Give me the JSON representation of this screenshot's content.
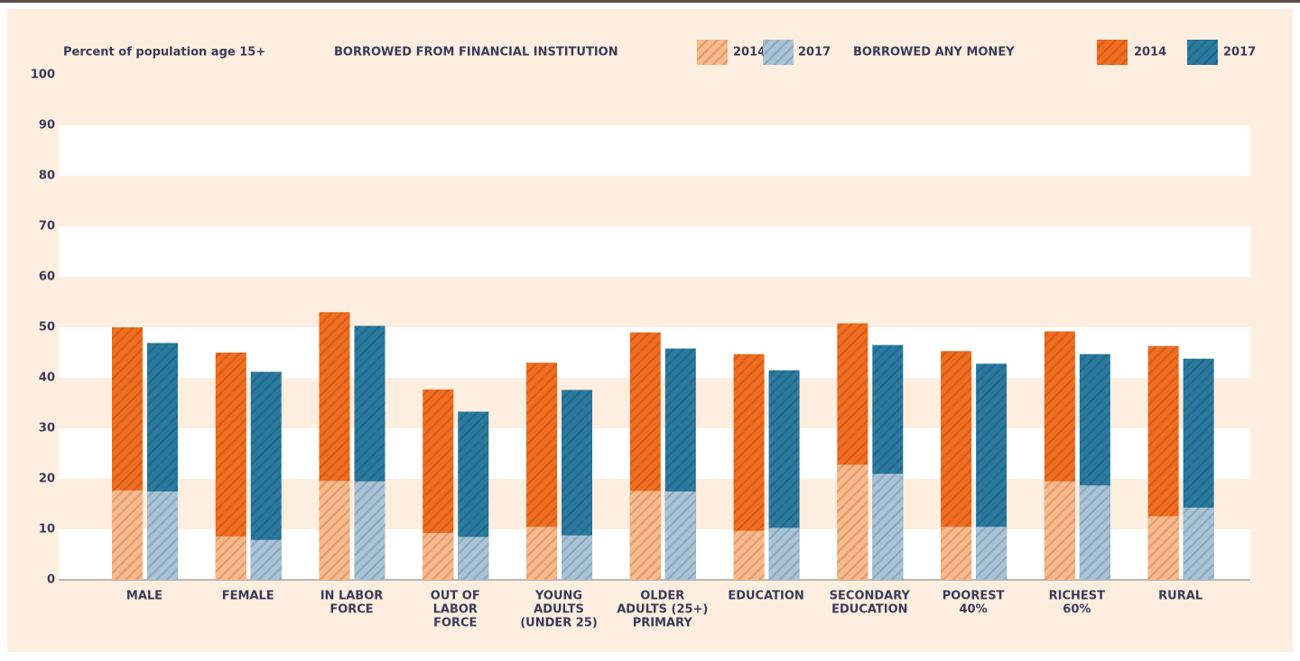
{
  "chart_data": {
    "type": "overlaid_bar",
    "ylabel": "Percent of population age 15+",
    "legend_groups": [
      "BORROWED FROM FINANCIAL INSTITUTION",
      "BORROWED ANY MONEY"
    ],
    "categories": [
      [
        "MALE"
      ],
      [
        "FEMALE"
      ],
      [
        "IN LABOR",
        "FORCE"
      ],
      [
        "OUT OF",
        "LABOR",
        "FORCE"
      ],
      [
        "YOUNG",
        "ADULTS",
        "(UNDER 25)"
      ],
      [
        "OLDER",
        "ADULTS (25+)",
        "PRIMARY"
      ],
      [
        "EDUCATION"
      ],
      [
        "SECONDARY",
        "EDUCATION"
      ],
      [
        "POOREST",
        "40%"
      ],
      [
        "RICHEST",
        "60%"
      ],
      [
        "RURAL"
      ]
    ],
    "series": [
      {
        "name": "2014",
        "color": "#fbb98a",
        "values": [
          17.7,
          8.6,
          19.6,
          9.3,
          10.5,
          17.6,
          9.7,
          22.8,
          10.5,
          19.5,
          12.6
        ]
      },
      {
        "name": "2017",
        "color": "#a9c4d8",
        "values": [
          17.5,
          7.9,
          19.5,
          8.5,
          8.8,
          17.5,
          10.3,
          21,
          10.5,
          18.7,
          14.3
        ]
      },
      {
        "name": "2014",
        "color": "#f26d1f",
        "values": [
          50,
          45,
          53,
          37.7,
          43,
          49,
          44.7,
          50.8,
          45.3,
          49.2,
          46.3
        ]
      },
      {
        "name": "2017",
        "color": "#2a7aa0",
        "values": [
          46.9,
          41.2,
          50.3,
          33.3,
          37.6,
          45.8,
          41.5,
          46.5,
          42.8,
          44.7,
          43.8
        ]
      }
    ],
    "ylim": [
      0,
      100
    ],
    "yticks": [
      0,
      10,
      20,
      30,
      40,
      50,
      60,
      70,
      80,
      90,
      100
    ],
    "grid": true
  }
}
